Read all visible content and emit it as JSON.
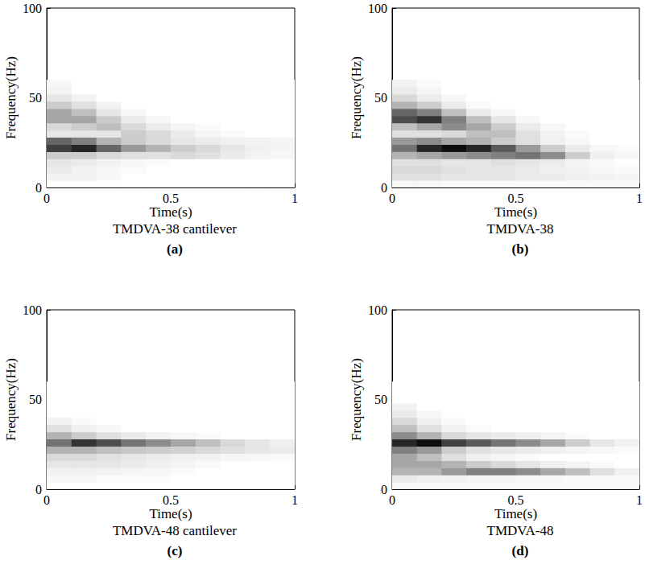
{
  "chart_data": [
    {
      "type": "heatmap",
      "title": "TMDVA-38 cantilever",
      "panel": "(a)",
      "x_label": "Time(s)",
      "y_label": "Frequency(Hz)",
      "xlim": [
        0,
        1
      ],
      "xticks": [
        0,
        0.5,
        1
      ],
      "ylim": [
        0,
        100
      ],
      "yticks": [
        0,
        50,
        100
      ],
      "grid": false,
      "colors": [
        "#ffffff",
        "#000000"
      ],
      "zlim": [
        0,
        1
      ],
      "time_bins": [
        0,
        0.1,
        0.2,
        0.3,
        0.4,
        0.5,
        0.6,
        0.7,
        0.8,
        0.9,
        1
      ],
      "frequency_bins": [
        0,
        4,
        8,
        12,
        16,
        20,
        24,
        28,
        32,
        36,
        40,
        44,
        48,
        52,
        56,
        60
      ],
      "intensity": [
        [
          0,
          0,
          0,
          0,
          0,
          0,
          0,
          0,
          0,
          0
        ],
        [
          0.05,
          0.05,
          0.03,
          0,
          0,
          0,
          0,
          0,
          0,
          0
        ],
        [
          0.08,
          0.05,
          0.03,
          0.02,
          0,
          0,
          0,
          0,
          0,
          0
        ],
        [
          0.1,
          0.08,
          0.05,
          0.03,
          0.02,
          0,
          0,
          0,
          0,
          0
        ],
        [
          0.2,
          0.2,
          0.15,
          0.12,
          0.12,
          0.15,
          0.12,
          0.08,
          0.05,
          0.03
        ],
        [
          0.75,
          0.85,
          0.6,
          0.4,
          0.3,
          0.2,
          0.15,
          0.1,
          0.06,
          0.04
        ],
        [
          0.6,
          0.5,
          0.3,
          0.2,
          0.15,
          0.1,
          0.08,
          0.06,
          0.05,
          0.04
        ],
        [
          0.1,
          0.1,
          0.1,
          0.2,
          0.15,
          0.08,
          0.04,
          0.02,
          0,
          0
        ],
        [
          0.15,
          0.2,
          0.25,
          0.15,
          0.08,
          0.04,
          0.02,
          0,
          0,
          0
        ],
        [
          0.35,
          0.35,
          0.2,
          0.08,
          0.03,
          0,
          0,
          0,
          0,
          0
        ],
        [
          0.35,
          0.25,
          0.1,
          0.03,
          0,
          0,
          0,
          0,
          0,
          0
        ],
        [
          0.2,
          0.12,
          0.05,
          0,
          0,
          0,
          0,
          0,
          0,
          0
        ],
        [
          0.1,
          0.05,
          0,
          0,
          0,
          0,
          0,
          0,
          0,
          0
        ],
        [
          0.05,
          0,
          0,
          0,
          0,
          0,
          0,
          0,
          0,
          0
        ],
        [
          0.03,
          0,
          0,
          0,
          0,
          0,
          0,
          0,
          0,
          0
        ]
      ]
    },
    {
      "type": "heatmap",
      "title": "TMDVA-38",
      "panel": "(b)",
      "x_label": "Time(s)",
      "y_label": "Frequency(Hz)",
      "xlim": [
        0,
        1
      ],
      "xticks": [
        0,
        0.5,
        1
      ],
      "ylim": [
        0,
        100
      ],
      "yticks": [
        0,
        50,
        100
      ],
      "grid": false,
      "colors": [
        "#ffffff",
        "#000000"
      ],
      "zlim": [
        0,
        1
      ],
      "time_bins": [
        0,
        0.1,
        0.2,
        0.3,
        0.4,
        0.5,
        0.6,
        0.7,
        0.8,
        0.9,
        1
      ],
      "frequency_bins": [
        0,
        4,
        8,
        12,
        16,
        20,
        24,
        28,
        32,
        36,
        40,
        44,
        48,
        52,
        56,
        60
      ],
      "intensity": [
        [
          0.03,
          0.03,
          0.02,
          0.02,
          0.02,
          0.02,
          0.02,
          0.02,
          0.02,
          0.02
        ],
        [
          0.12,
          0.12,
          0.1,
          0.1,
          0.1,
          0.08,
          0.08,
          0.06,
          0.05,
          0.04
        ],
        [
          0.15,
          0.15,
          0.12,
          0.1,
          0.1,
          0.08,
          0.06,
          0.05,
          0.03,
          0.02
        ],
        [
          0.12,
          0.12,
          0.1,
          0.1,
          0.12,
          0.1,
          0.08,
          0.04,
          0.02,
          0
        ],
        [
          0.3,
          0.35,
          0.4,
          0.45,
          0.5,
          0.55,
          0.45,
          0.2,
          0.06,
          0.03
        ],
        [
          0.55,
          0.85,
          0.95,
          0.85,
          0.65,
          0.4,
          0.2,
          0.08,
          0.03,
          0.02
        ],
        [
          0.4,
          0.45,
          0.35,
          0.3,
          0.2,
          0.12,
          0.06,
          0.03,
          0,
          0
        ],
        [
          0.12,
          0.12,
          0.15,
          0.25,
          0.25,
          0.12,
          0.05,
          0.02,
          0,
          0
        ],
        [
          0.25,
          0.35,
          0.45,
          0.35,
          0.2,
          0.08,
          0.03,
          0,
          0,
          0
        ],
        [
          0.7,
          0.8,
          0.5,
          0.25,
          0.1,
          0.03,
          0,
          0,
          0,
          0
        ],
        [
          0.6,
          0.5,
          0.25,
          0.08,
          0.03,
          0,
          0,
          0,
          0,
          0
        ],
        [
          0.3,
          0.2,
          0.08,
          0.02,
          0,
          0,
          0,
          0,
          0,
          0
        ],
        [
          0.15,
          0.08,
          0.03,
          0,
          0,
          0,
          0,
          0,
          0,
          0
        ],
        [
          0.08,
          0.04,
          0,
          0,
          0,
          0,
          0,
          0,
          0,
          0
        ],
        [
          0.05,
          0.02,
          0,
          0,
          0,
          0,
          0,
          0,
          0,
          0
        ]
      ]
    },
    {
      "type": "heatmap",
      "title": "TMDVA-48 cantilever",
      "panel": "(c)",
      "x_label": "Time(s)",
      "y_label": "Frequency(Hz)",
      "xlim": [
        0,
        1
      ],
      "xticks": [
        0,
        0.5,
        1
      ],
      "ylim": [
        0,
        100
      ],
      "yticks": [
        0,
        50,
        100
      ],
      "grid": false,
      "colors": [
        "#ffffff",
        "#000000"
      ],
      "zlim": [
        0,
        1
      ],
      "time_bins": [
        0,
        0.1,
        0.2,
        0.3,
        0.4,
        0.5,
        0.6,
        0.7,
        0.8,
        0.9,
        1
      ],
      "frequency_bins": [
        0,
        4,
        8,
        12,
        16,
        20,
        24,
        28,
        32,
        36,
        40,
        44,
        48,
        52,
        56,
        60
      ],
      "intensity": [
        [
          0,
          0,
          0,
          0,
          0,
          0,
          0,
          0,
          0,
          0
        ],
        [
          0.03,
          0.03,
          0.02,
          0.02,
          0.02,
          0,
          0,
          0,
          0,
          0
        ],
        [
          0.05,
          0.05,
          0.05,
          0.04,
          0.03,
          0.02,
          0,
          0,
          0,
          0
        ],
        [
          0.1,
          0.1,
          0.1,
          0.08,
          0.06,
          0.04,
          0.02,
          0,
          0,
          0
        ],
        [
          0.15,
          0.15,
          0.12,
          0.1,
          0.08,
          0.06,
          0.05,
          0.04,
          0.03,
          0.02
        ],
        [
          0.3,
          0.3,
          0.25,
          0.22,
          0.2,
          0.18,
          0.15,
          0.12,
          0.1,
          0.08
        ],
        [
          0.55,
          0.8,
          0.7,
          0.55,
          0.45,
          0.35,
          0.25,
          0.15,
          0.1,
          0.06
        ],
        [
          0.3,
          0.2,
          0.12,
          0.08,
          0.05,
          0.03,
          0.02,
          0,
          0,
          0
        ],
        [
          0.12,
          0.06,
          0.03,
          0,
          0,
          0,
          0,
          0,
          0,
          0
        ],
        [
          0.05,
          0.02,
          0,
          0,
          0,
          0,
          0,
          0,
          0,
          0
        ],
        [
          0,
          0,
          0,
          0,
          0,
          0,
          0,
          0,
          0,
          0
        ],
        [
          0,
          0,
          0,
          0,
          0,
          0,
          0,
          0,
          0,
          0
        ],
        [
          0,
          0,
          0,
          0,
          0,
          0,
          0,
          0,
          0,
          0
        ],
        [
          0,
          0,
          0,
          0,
          0,
          0,
          0,
          0,
          0,
          0
        ],
        [
          0,
          0,
          0,
          0,
          0,
          0,
          0,
          0,
          0,
          0
        ]
      ]
    },
    {
      "type": "heatmap",
      "title": "TMDVA-48",
      "panel": "(d)",
      "x_label": "Time(s)",
      "y_label": "Frequency(Hz)",
      "xlim": [
        0,
        1
      ],
      "xticks": [
        0,
        0.5,
        1
      ],
      "ylim": [
        0,
        100
      ],
      "yticks": [
        0,
        50,
        100
      ],
      "grid": false,
      "colors": [
        "#ffffff",
        "#000000"
      ],
      "zlim": [
        0,
        1
      ],
      "time_bins": [
        0,
        0.1,
        0.2,
        0.3,
        0.4,
        0.5,
        0.6,
        0.7,
        0.8,
        0.9,
        1
      ],
      "frequency_bins": [
        0,
        4,
        8,
        12,
        16,
        20,
        24,
        28,
        32,
        36,
        40,
        44,
        48,
        52,
        56,
        60
      ],
      "intensity": [
        [
          0.02,
          0.02,
          0.02,
          0.02,
          0.02,
          0.02,
          0.02,
          0.02,
          0.02,
          0.02
        ],
        [
          0.08,
          0.06,
          0.05,
          0.04,
          0.04,
          0.03,
          0.03,
          0.02,
          0.02,
          0.02
        ],
        [
          0.3,
          0.3,
          0.4,
          0.5,
          0.5,
          0.45,
          0.35,
          0.25,
          0.12,
          0.06
        ],
        [
          0.35,
          0.35,
          0.3,
          0.2,
          0.15,
          0.1,
          0.06,
          0.04,
          0.02,
          0
        ],
        [
          0.35,
          0.25,
          0.12,
          0.06,
          0.04,
          0.02,
          0,
          0,
          0,
          0
        ],
        [
          0.5,
          0.4,
          0.2,
          0.12,
          0.1,
          0.08,
          0.06,
          0.04,
          0.03,
          0.02
        ],
        [
          0.85,
          0.95,
          0.75,
          0.65,
          0.55,
          0.45,
          0.35,
          0.2,
          0.1,
          0.05
        ],
        [
          0.45,
          0.3,
          0.15,
          0.1,
          0.08,
          0.06,
          0.04,
          0.02,
          0,
          0
        ],
        [
          0.25,
          0.12,
          0.05,
          0.02,
          0,
          0,
          0,
          0,
          0,
          0
        ],
        [
          0.15,
          0.06,
          0.02,
          0,
          0,
          0,
          0,
          0,
          0,
          0
        ],
        [
          0.08,
          0.03,
          0,
          0,
          0,
          0,
          0,
          0,
          0,
          0
        ],
        [
          0.05,
          0,
          0,
          0,
          0,
          0,
          0,
          0,
          0,
          0
        ],
        [
          0,
          0,
          0,
          0,
          0,
          0,
          0,
          0,
          0,
          0
        ],
        [
          0,
          0,
          0,
          0,
          0,
          0,
          0,
          0,
          0,
          0
        ],
        [
          0,
          0,
          0,
          0,
          0,
          0,
          0,
          0,
          0,
          0
        ]
      ]
    }
  ]
}
